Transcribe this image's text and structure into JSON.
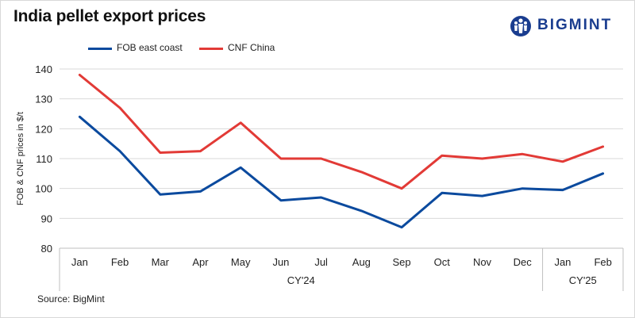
{
  "header": {
    "title": "India pellet export prices"
  },
  "logo": {
    "text": "BIGMINT"
  },
  "source": "Source: BigMint",
  "colors": {
    "fob": "#0b4a9e",
    "cnf": "#e23a36",
    "brand": "#1a3d8f"
  },
  "chart_data": {
    "type": "line",
    "title": "India pellet export prices",
    "ylabel": "FOB & CNF prices in $/t",
    "xlabel": "",
    "ylim": [
      80,
      140
    ],
    "yticks": [
      80,
      90,
      100,
      110,
      120,
      130,
      140
    ],
    "grid": true,
    "legend_position": "top-left",
    "categories": [
      "Jan",
      "Feb",
      "Mar",
      "Apr",
      "May",
      "Jun",
      "Jul",
      "Aug",
      "Sep",
      "Oct",
      "Nov",
      "Dec",
      "Jan",
      "Feb"
    ],
    "groups": [
      {
        "label": "CY'24",
        "count": 12
      },
      {
        "label": "CY'25",
        "count": 2
      }
    ],
    "series": [
      {
        "name": "FOB east coast",
        "color": "#0b4a9e",
        "values": [
          124,
          112.5,
          98,
          99,
          107,
          96,
          97,
          92.5,
          87,
          98.5,
          97.5,
          100,
          99.5,
          105
        ]
      },
      {
        "name": "CNF China",
        "color": "#e23a36",
        "values": [
          138,
          127,
          112,
          112.5,
          122,
          110,
          110,
          105.5,
          100,
          111,
          110,
          111.5,
          109,
          114
        ]
      }
    ]
  }
}
